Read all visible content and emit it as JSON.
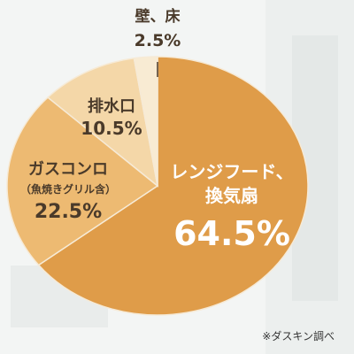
{
  "chart_data": {
    "type": "pie",
    "categories": [
      "レンジフード、換気扇",
      "ガスコンロ（魚焼きグリル含）",
      "排水口",
      "壁、床"
    ],
    "values": [
      64.5,
      22.5,
      10.5,
      2.5
    ],
    "colors": [
      "#df9c49",
      "#edba72",
      "#f4d7a8",
      "#f8ebd3"
    ],
    "labels": [
      {
        "lines": [
          "レンジフード、",
          "換気扇"
        ],
        "value": "64.5%"
      },
      {
        "lines": [
          "ガスコンロ",
          "（魚焼きグリル含）"
        ],
        "value": "22.5%"
      },
      {
        "lines": [
          "排水口"
        ],
        "value": "10.5%"
      },
      {
        "lines": [
          "壁、床"
        ],
        "value": "2.5%"
      }
    ],
    "start": "top",
    "direction": "clockwise",
    "legend": "none"
  },
  "source_note": "※ダスキン調べ"
}
